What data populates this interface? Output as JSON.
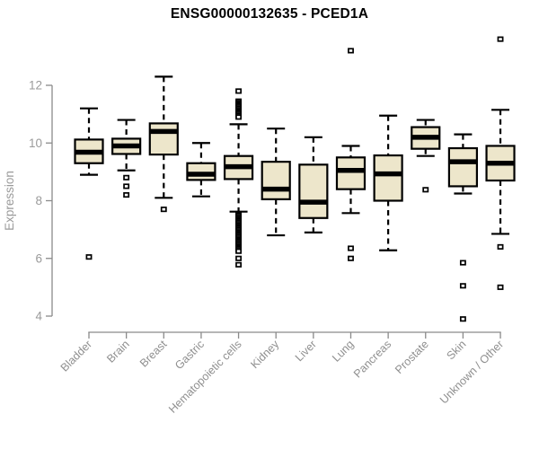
{
  "page": {
    "title": "ENSG00000132635 - PCED1A"
  },
  "chart_data": {
    "type": "boxplot",
    "title": "ENSG00000132635 - PCED1A",
    "xlabel": "",
    "ylabel": "Expression",
    "yticks": [
      4,
      6,
      8,
      10,
      12
    ],
    "ylim": [
      3.6,
      13.9
    ],
    "grid": false,
    "legend": "none",
    "categories": [
      "Bladder",
      "Brain",
      "Breast",
      "Gastric",
      "Hematopoietic cells",
      "Kidney",
      "Liver",
      "Lung",
      "Pancreas",
      "Prostate",
      "Skin",
      "Unknown / Other"
    ],
    "boxes": [
      {
        "category": "Bladder",
        "whisker_low": 8.9,
        "q1": 9.3,
        "median": 9.68,
        "q3": 10.12,
        "whisker_high": 11.2,
        "outliers": [
          6.05
        ]
      },
      {
        "category": "Brain",
        "whisker_low": 9.05,
        "q1": 9.62,
        "median": 9.9,
        "q3": 10.15,
        "whisker_high": 10.8,
        "outliers": [
          8.8,
          8.5,
          8.2
        ]
      },
      {
        "category": "Breast",
        "whisker_low": 8.1,
        "q1": 9.6,
        "median": 10.4,
        "q3": 10.68,
        "whisker_high": 12.3,
        "outliers": [
          7.7
        ]
      },
      {
        "category": "Gastric",
        "whisker_low": 8.15,
        "q1": 8.72,
        "median": 8.92,
        "q3": 9.3,
        "whisker_high": 10.0,
        "outliers": []
      },
      {
        "category": "Hematopoietic cells",
        "whisker_low": 7.62,
        "q1": 8.75,
        "median": 9.18,
        "q3": 9.55,
        "whisker_high": 10.65,
        "outliers": [
          11.8,
          11.45,
          11.4,
          11.35,
          11.3,
          11.25,
          11.2,
          11.15,
          11.1,
          11.05,
          11.0,
          10.95,
          10.9,
          7.55,
          7.5,
          7.45,
          7.4,
          7.35,
          7.3,
          7.25,
          7.2,
          7.15,
          7.1,
          7.05,
          7.0,
          6.95,
          6.9,
          6.85,
          6.8,
          6.75,
          6.7,
          6.65,
          6.6,
          6.55,
          6.5,
          6.45,
          6.4,
          6.35,
          6.3,
          6.25,
          6.0,
          5.78
        ]
      },
      {
        "category": "Kidney",
        "whisker_low": 6.8,
        "q1": 8.05,
        "median": 8.4,
        "q3": 9.35,
        "whisker_high": 10.5,
        "outliers": []
      },
      {
        "category": "Liver",
        "whisker_low": 6.9,
        "q1": 7.4,
        "median": 7.95,
        "q3": 9.25,
        "whisker_high": 10.2,
        "outliers": []
      },
      {
        "category": "Lung",
        "whisker_low": 7.57,
        "q1": 8.4,
        "median": 9.05,
        "q3": 9.5,
        "whisker_high": 9.9,
        "outliers": [
          13.2,
          6.35,
          6.0
        ]
      },
      {
        "category": "Pancreas",
        "whisker_low": 6.28,
        "q1": 8.0,
        "median": 8.93,
        "q3": 9.57,
        "whisker_high": 10.95,
        "outliers": []
      },
      {
        "category": "Prostate",
        "whisker_low": 9.55,
        "q1": 9.8,
        "median": 10.2,
        "q3": 10.55,
        "whisker_high": 10.8,
        "outliers": [
          8.38
        ]
      },
      {
        "category": "Skin",
        "whisker_low": 8.25,
        "q1": 8.5,
        "median": 9.35,
        "q3": 9.82,
        "whisker_high": 10.3,
        "outliers": [
          5.85,
          5.05,
          3.9
        ]
      },
      {
        "category": "Unknown / Other",
        "whisker_low": 6.85,
        "q1": 8.7,
        "median": 9.3,
        "q3": 9.9,
        "whisker_high": 11.15,
        "outliers": [
          13.6,
          6.4,
          5.0
        ]
      }
    ],
    "colors": {
      "background": "#ffffff",
      "box_fill": "#EDE6CB",
      "box_line": "#000000",
      "median_line": "#000000",
      "outlier_fill": "#ffffff",
      "axis": "#8a8a8a",
      "tick_labels": "#9a9a9a",
      "category_labels": "#8f8f8f",
      "ylabel_color": "#9a9a9a",
      "title": "#000000"
    }
  }
}
